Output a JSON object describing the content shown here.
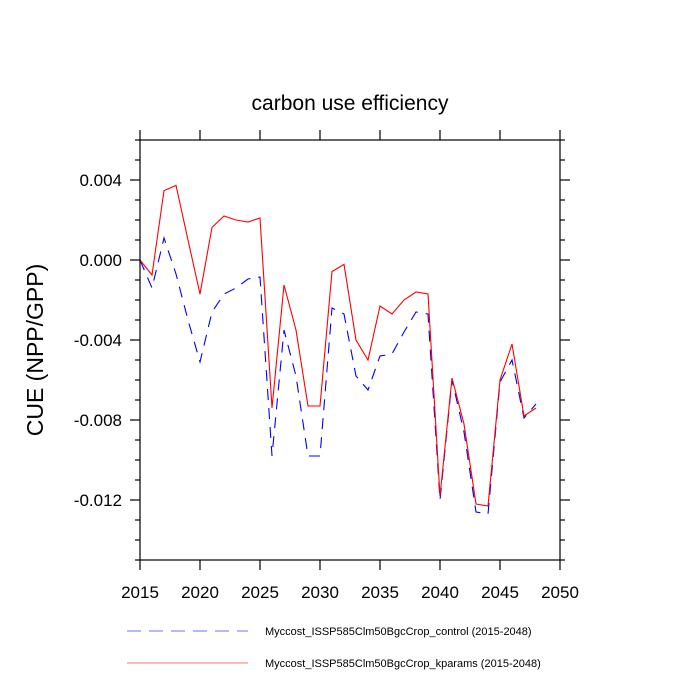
{
  "chart_data": {
    "type": "line",
    "title": "carbon use efficiency",
    "xlabel": "",
    "ylabel": "CUE  (NPP/GPP)",
    "xlim": [
      2015,
      2050
    ],
    "ylim": [
      -0.015,
      0.006
    ],
    "xticks": [
      2015,
      2020,
      2025,
      2030,
      2035,
      2040,
      2045,
      2050
    ],
    "xtick_labels": [
      "2015",
      "2020",
      "2025",
      "2030",
      "2035",
      "2040",
      "2045",
      "2050"
    ],
    "yticks": [
      0.004,
      0.0,
      -0.004,
      -0.008,
      -0.012
    ],
    "ytick_labels": [
      "0.004",
      "0.000",
      "-0.004",
      "-0.008",
      "-0.012"
    ],
    "yminor_step": 0.001,
    "grid": false,
    "legend_position": "bottom",
    "x": [
      2015,
      2016,
      2017,
      2018,
      2019,
      2020,
      2021,
      2022,
      2023,
      2024,
      2025,
      2026,
      2027,
      2028,
      2029,
      2030,
      2031,
      2032,
      2033,
      2034,
      2035,
      2036,
      2037,
      2038,
      2039,
      2040,
      2041,
      2042,
      2043,
      2044,
      2045,
      2046,
      2047,
      2048
    ],
    "series": [
      {
        "name": "Myccost_ISSP585Clm50BgcCrop_control (2015-2048)",
        "color": "#0000ff",
        "dash": "dashed",
        "values": [
          0.0,
          -0.0014,
          0.0011,
          -0.0007,
          -0.003,
          -0.0051,
          -0.0026,
          -0.0017,
          -0.0014,
          -0.00095,
          -0.00085,
          -0.0098,
          -0.0035,
          -0.0058,
          -0.0098,
          -0.0098,
          -0.0024,
          -0.0027,
          -0.0058,
          -0.0065,
          -0.0048,
          -0.0047,
          -0.0036,
          -0.0026,
          -0.0027,
          -0.012,
          -0.006,
          -0.0086,
          -0.0126,
          -0.0127,
          -0.0061,
          -0.005,
          -0.0079,
          -0.0072
        ]
      },
      {
        "name": "Myccost_ISSP585Clm50BgcCrop_kparams (2015-2048)",
        "color": "#ff0000",
        "dash": "solid",
        "values": [
          0.0,
          -0.00075,
          0.00347,
          0.00373,
          0.001,
          -0.0017,
          0.00163,
          0.0022,
          0.002,
          0.0019,
          0.0021,
          -0.0074,
          -0.00125,
          -0.0035,
          -0.0073,
          -0.0073,
          -0.00058,
          -0.00022,
          -0.004,
          -0.005,
          -0.0023,
          -0.0027,
          -0.002,
          -0.0016,
          -0.0017,
          -0.0118,
          -0.0059,
          -0.0082,
          -0.0122,
          -0.0123,
          -0.006,
          -0.0042,
          -0.0078,
          -0.0074
        ]
      }
    ]
  }
}
